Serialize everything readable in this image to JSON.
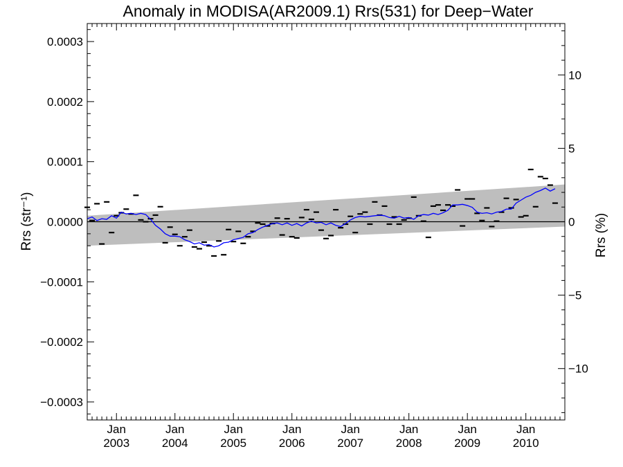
{
  "chart_data": {
    "type": "scatter",
    "title": "Anomaly in MODISA(AR2009.1) Rrs(531) for Deep−Water",
    "ylabel_left": "Rrs (str⁻¹)",
    "ylabel_right": "Rrs (%)",
    "xlabel": "",
    "x_range": [
      "2002-07",
      "2010-09"
    ],
    "ylim_left": [
      -0.00033,
      0.00033
    ],
    "ylim_right": [
      -13.5,
      13.5
    ],
    "left_ticks": [
      "0.0003",
      "0.0002",
      "0.0001",
      "0.0000",
      "−0.0001",
      "−0.0002",
      "−0.0003"
    ],
    "left_tick_values": [
      0.0003,
      0.0002,
      0.0001,
      0.0,
      -0.0001,
      -0.0002,
      -0.0003
    ],
    "right_ticks": [
      "10",
      "5",
      "0",
      "−5",
      "−10"
    ],
    "right_tick_values": [
      10,
      5,
      0,
      -5,
      -10
    ],
    "x_ticks": [
      {
        "month": "Jan",
        "year": "2003",
        "date": "2003-01"
      },
      {
        "month": "Jan",
        "year": "2004",
        "date": "2004-01"
      },
      {
        "month": "Jan",
        "year": "2005",
        "date": "2005-01"
      },
      {
        "month": "Jan",
        "year": "2006",
        "date": "2006-01"
      },
      {
        "month": "Jan",
        "year": "2007",
        "date": "2007-01"
      },
      {
        "month": "Jan",
        "year": "2008",
        "date": "2008-01"
      },
      {
        "month": "Jan",
        "year": "2009",
        "date": "2009-01"
      },
      {
        "month": "Jan",
        "year": "2010",
        "date": "2010-01"
      }
    ],
    "confidence_band": {
      "start": {
        "date": "2002-07",
        "low": -4e-05,
        "high": 1e-05
      },
      "end": {
        "date": "2010-09",
        "low": -8e-06,
        "high": 6.2e-05
      },
      "color": "#bebebe"
    },
    "zero_line": 0,
    "monthly_anomalies": {
      "marker": "dash",
      "color": "#000000",
      "points": [
        [
          "2002-07",
          2.4e-05
        ],
        [
          "2002-08",
          2e-06
        ],
        [
          "2002-09",
          3e-05
        ],
        [
          "2002-10",
          -3.7e-05
        ],
        [
          "2002-11",
          3.3e-05
        ],
        [
          "2002-12",
          -1.8e-05
        ],
        [
          "2003-01",
          1e-05
        ],
        [
          "2003-02",
          1.5e-05
        ],
        [
          "2003-03",
          2.1e-05
        ],
        [
          "2003-04",
          1.3e-05
        ],
        [
          "2003-05",
          4.4e-05
        ],
        [
          "2003-06",
          3e-06
        ],
        [
          "2003-07",
          0.0
        ],
        [
          "2003-08",
          5e-06
        ],
        [
          "2003-09",
          1.1e-05
        ],
        [
          "2003-10",
          2.5e-05
        ],
        [
          "2003-11",
          -3.5e-05
        ],
        [
          "2003-12",
          -9e-06
        ],
        [
          "2004-01",
          -2.1e-05
        ],
        [
          "2004-02",
          -4e-05
        ],
        [
          "2004-03",
          -2.5e-05
        ],
        [
          "2004-04",
          -1.4e-05
        ],
        [
          "2004-05",
          -4.2e-05
        ],
        [
          "2004-06",
          -4.5e-05
        ],
        [
          "2004-07",
          -3.4e-05
        ],
        [
          "2004-08",
          -4e-05
        ],
        [
          "2004-09",
          -5.7e-05
        ],
        [
          "2004-10",
          -3.2e-05
        ],
        [
          "2004-11",
          -5.5e-05
        ],
        [
          "2004-12",
          -1.3e-05
        ],
        [
          "2005-01",
          -3.3e-05
        ],
        [
          "2005-02",
          -1.6e-05
        ],
        [
          "2005-03",
          -3.6e-05
        ],
        [
          "2005-04",
          -2.5e-05
        ],
        [
          "2005-05",
          -1.6e-05
        ],
        [
          "2005-06",
          -2e-06
        ],
        [
          "2005-07",
          -4e-06
        ],
        [
          "2005-08",
          -7e-06
        ],
        [
          "2005-09",
          -3e-06
        ],
        [
          "2005-10",
          6e-06
        ],
        [
          "2005-11",
          -2.2e-05
        ],
        [
          "2005-12",
          5e-06
        ],
        [
          "2006-01",
          -2.5e-05
        ],
        [
          "2006-02",
          -2.7e-05
        ],
        [
          "2006-03",
          7e-06
        ],
        [
          "2006-04",
          2e-05
        ],
        [
          "2006-05",
          4e-06
        ],
        [
          "2006-06",
          1.6e-05
        ],
        [
          "2006-07",
          -1.4e-05
        ],
        [
          "2006-08",
          -2.8e-05
        ],
        [
          "2006-09",
          -2.3e-05
        ],
        [
          "2006-10",
          2e-05
        ],
        [
          "2006-11",
          -1e-05
        ],
        [
          "2006-12",
          -4e-06
        ],
        [
          "2007-01",
          9e-06
        ],
        [
          "2007-02",
          -1.8e-05
        ],
        [
          "2007-03",
          1.3e-05
        ],
        [
          "2007-04",
          1.6e-05
        ],
        [
          "2007-05",
          -4e-06
        ],
        [
          "2007-06",
          3.3e-05
        ],
        [
          "2007-07",
          1.1e-05
        ],
        [
          "2007-08",
          2.6e-05
        ],
        [
          "2007-09",
          -4e-06
        ],
        [
          "2007-10",
          8e-06
        ],
        [
          "2007-11",
          -4e-06
        ],
        [
          "2007-12",
          3e-06
        ],
        [
          "2008-01",
          6e-06
        ],
        [
          "2008-02",
          4.1e-05
        ],
        [
          "2008-03",
          1e-05
        ],
        [
          "2008-04",
          1e-06
        ],
        [
          "2008-05",
          -2.6e-05
        ],
        [
          "2008-06",
          2.6e-05
        ],
        [
          "2008-07",
          2.8e-05
        ],
        [
          "2008-08",
          1.9e-05
        ],
        [
          "2008-09",
          2.8e-05
        ],
        [
          "2008-10",
          2.6e-05
        ],
        [
          "2008-11",
          5.3e-05
        ],
        [
          "2008-12",
          -7e-06
        ],
        [
          "2009-01",
          3.8e-05
        ],
        [
          "2009-02",
          3.8e-05
        ],
        [
          "2009-03",
          1.4e-05
        ],
        [
          "2009-04",
          2e-06
        ],
        [
          "2009-05",
          2.3e-05
        ],
        [
          "2009-06",
          -8e-06
        ],
        [
          "2009-07",
          1e-06
        ],
        [
          "2009-08",
          1.6e-05
        ],
        [
          "2009-09",
          3.9e-05
        ],
        [
          "2009-10",
          2.3e-05
        ],
        [
          "2009-11",
          3.7e-05
        ],
        [
          "2009-12",
          8e-06
        ],
        [
          "2010-01",
          1e-05
        ],
        [
          "2010-02",
          8.7e-05
        ],
        [
          "2010-03",
          2.5e-05
        ],
        [
          "2010-04",
          7.5e-05
        ],
        [
          "2010-05",
          7.2e-05
        ],
        [
          "2010-06",
          6.1e-05
        ],
        [
          "2010-07",
          3.1e-05
        ]
      ]
    },
    "running_mean": {
      "color": "#0000ff",
      "points": [
        [
          "2002-07",
          5e-06
        ],
        [
          "2002-08",
          8e-06
        ],
        [
          "2002-09",
          2e-06
        ],
        [
          "2002-10",
          5e-06
        ],
        [
          "2002-11",
          4e-06
        ],
        [
          "2002-12",
          1e-05
        ],
        [
          "2003-01",
          6e-06
        ],
        [
          "2003-02",
          1.6e-05
        ],
        [
          "2003-03",
          1.3e-05
        ],
        [
          "2003-04",
          1.4e-05
        ],
        [
          "2003-05",
          1.2e-05
        ],
        [
          "2003-06",
          1.4e-05
        ],
        [
          "2003-07",
          1.2e-05
        ],
        [
          "2003-08",
          4e-06
        ],
        [
          "2003-09",
          -6e-06
        ],
        [
          "2003-10",
          -1.2e-05
        ],
        [
          "2003-11",
          -2e-05
        ],
        [
          "2003-12",
          -2.4e-05
        ],
        [
          "2004-01",
          -2.4e-05
        ],
        [
          "2004-02",
          -2.5e-05
        ],
        [
          "2004-03",
          -3e-05
        ],
        [
          "2004-04",
          -3.3e-05
        ],
        [
          "2004-05",
          -3.7e-05
        ],
        [
          "2004-06",
          -3.5e-05
        ],
        [
          "2004-07",
          -3.9e-05
        ],
        [
          "2004-08",
          -3.8e-05
        ],
        [
          "2004-09",
          -4.2e-05
        ],
        [
          "2004-10",
          -4e-05
        ],
        [
          "2004-11",
          -3.5e-05
        ],
        [
          "2004-12",
          -3.4e-05
        ],
        [
          "2005-01",
          -3e-05
        ],
        [
          "2005-02",
          -2.8e-05
        ],
        [
          "2005-03",
          -2.6e-05
        ],
        [
          "2005-04",
          -2e-05
        ],
        [
          "2005-05",
          -1.8e-05
        ],
        [
          "2005-06",
          -1.3e-05
        ],
        [
          "2005-07",
          -9e-06
        ],
        [
          "2005-08",
          -6e-06
        ],
        [
          "2005-09",
          -3e-06
        ],
        [
          "2005-10",
          -2e-06
        ],
        [
          "2005-11",
          -5e-06
        ],
        [
          "2005-12",
          -2e-06
        ],
        [
          "2006-01",
          -6e-06
        ],
        [
          "2006-02",
          -3e-06
        ],
        [
          "2006-03",
          -7e-06
        ],
        [
          "2006-04",
          -2e-06
        ],
        [
          "2006-05",
          1e-06
        ],
        [
          "2006-06",
          -2e-06
        ],
        [
          "2006-07",
          -1e-06
        ],
        [
          "2006-08",
          -5e-06
        ],
        [
          "2006-09",
          -2e-06
        ],
        [
          "2006-10",
          -6e-06
        ],
        [
          "2006-11",
          -8e-06
        ],
        [
          "2006-12",
          -3e-06
        ],
        [
          "2007-01",
          3e-06
        ],
        [
          "2007-02",
          7e-06
        ],
        [
          "2007-03",
          9e-06
        ],
        [
          "2007-04",
          8e-06
        ],
        [
          "2007-05",
          9e-06
        ],
        [
          "2007-06",
          1e-05
        ],
        [
          "2007-07",
          1.1e-05
        ],
        [
          "2007-08",
          1e-05
        ],
        [
          "2007-09",
          7e-06
        ],
        [
          "2007-10",
          6e-06
        ],
        [
          "2007-11",
          9e-06
        ],
        [
          "2007-12",
          6e-06
        ],
        [
          "2008-01",
          7e-06
        ],
        [
          "2008-02",
          4e-06
        ],
        [
          "2008-03",
          1e-05
        ],
        [
          "2008-04",
          1.2e-05
        ],
        [
          "2008-05",
          1.1e-05
        ],
        [
          "2008-06",
          1.4e-05
        ],
        [
          "2008-07",
          1.2e-05
        ],
        [
          "2008-08",
          1.5e-05
        ],
        [
          "2008-09",
          1.9e-05
        ],
        [
          "2008-10",
          2.8e-05
        ],
        [
          "2008-11",
          2.8e-05
        ],
        [
          "2008-12",
          2.9e-05
        ],
        [
          "2009-01",
          2.7e-05
        ],
        [
          "2009-02",
          2.4e-05
        ],
        [
          "2009-03",
          1.6e-05
        ],
        [
          "2009-04",
          1.4e-05
        ],
        [
          "2009-05",
          1.5e-05
        ],
        [
          "2009-06",
          1.3e-05
        ],
        [
          "2009-07",
          1.6e-05
        ],
        [
          "2009-08",
          1.7e-05
        ],
        [
          "2009-09",
          2.1e-05
        ],
        [
          "2009-10",
          2.1e-05
        ],
        [
          "2009-11",
          3.1e-05
        ],
        [
          "2009-12",
          3.6e-05
        ],
        [
          "2010-01",
          4.1e-05
        ],
        [
          "2010-02",
          4.4e-05
        ],
        [
          "2010-03",
          4.9e-05
        ],
        [
          "2010-04",
          5.2e-05
        ],
        [
          "2010-05",
          5.6e-05
        ],
        [
          "2010-06",
          5.1e-05
        ],
        [
          "2010-07",
          5.5e-05
        ]
      ]
    }
  }
}
